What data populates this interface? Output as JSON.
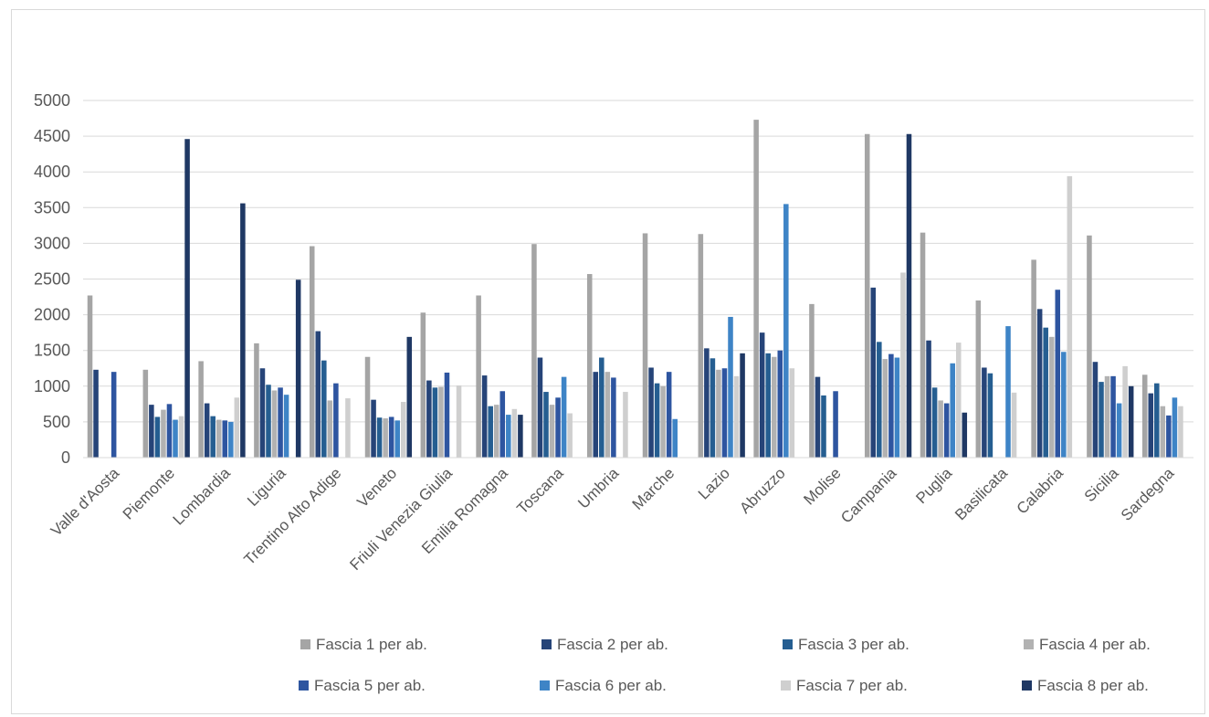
{
  "chart_data": {
    "type": "bar",
    "title": "",
    "xlabel": "",
    "ylabel": "",
    "ylim": [
      0,
      5000
    ],
    "y_ticks": [
      0,
      500,
      1000,
      1500,
      2000,
      2500,
      3000,
      3500,
      4000,
      4500,
      5000
    ],
    "grid": true,
    "legend_position": "bottom",
    "categories": [
      "Valle d'Aosta",
      "Piemonte",
      "Lombardia",
      "Liguria",
      "Trentino Alto Adige",
      "Veneto",
      "Friuli Venezia Giulia",
      "Emilia Romagna",
      "Toscana",
      "Umbria",
      "Marche",
      "Lazio",
      "Abruzzo",
      "Molise",
      "Campania",
      "Puglia",
      "Basilicata",
      "Calabria",
      "Sicilia",
      "Sardegna"
    ],
    "series": [
      {
        "name": "Fascia 1 per ab.",
        "color": "#a5a5a5",
        "values": [
          2270,
          1230,
          1350,
          1600,
          2960,
          1410,
          2030,
          2270,
          2990,
          2570,
          3140,
          3130,
          4730,
          2150,
          4530,
          3150,
          2200,
          2770,
          3110,
          1160
        ]
      },
      {
        "name": "Fascia 2 per ab.",
        "color": "#264478",
        "values": [
          1230,
          740,
          760,
          1250,
          1770,
          810,
          1080,
          1150,
          1400,
          1200,
          1260,
          1530,
          1750,
          1130,
          2380,
          1640,
          1260,
          2080,
          1340,
          900
        ]
      },
      {
        "name": "Fascia 3 per ab.",
        "color": "#255e91",
        "values": [
          null,
          570,
          580,
          1020,
          1360,
          560,
          980,
          720,
          920,
          1400,
          1040,
          1390,
          1460,
          870,
          1620,
          980,
          1180,
          1820,
          1060,
          1040
        ]
      },
      {
        "name": "Fascia 4 per ab.",
        "color": "#b2b2b2",
        "values": [
          null,
          670,
          530,
          940,
          800,
          550,
          990,
          740,
          740,
          1200,
          1000,
          1230,
          1410,
          null,
          1380,
          800,
          null,
          1690,
          1140,
          720
        ]
      },
      {
        "name": "Fascia 5 per ab.",
        "color": "#2e55a0",
        "values": [
          1200,
          750,
          520,
          980,
          1040,
          570,
          1190,
          930,
          840,
          1120,
          1200,
          1250,
          1500,
          930,
          1450,
          760,
          null,
          2350,
          1140,
          590
        ]
      },
      {
        "name": "Fascia 6 per ab.",
        "color": "#3e84c6",
        "values": [
          null,
          530,
          500,
          880,
          null,
          520,
          null,
          600,
          1130,
          null,
          540,
          1970,
          3550,
          null,
          1400,
          1320,
          1840,
          1480,
          760,
          840
        ]
      },
      {
        "name": "Fascia 7 per ab.",
        "color": "#cfcfcf",
        "values": [
          null,
          580,
          840,
          null,
          830,
          780,
          1010,
          680,
          620,
          920,
          null,
          1140,
          1250,
          null,
          2590,
          1610,
          910,
          3940,
          1280,
          720
        ]
      },
      {
        "name": "Fascia 8 per ab.",
        "color": "#1f3864",
        "values": [
          null,
          4460,
          3560,
          2490,
          null,
          1690,
          null,
          600,
          null,
          null,
          null,
          1460,
          null,
          null,
          4530,
          630,
          null,
          null,
          1000,
          null
        ]
      }
    ]
  }
}
